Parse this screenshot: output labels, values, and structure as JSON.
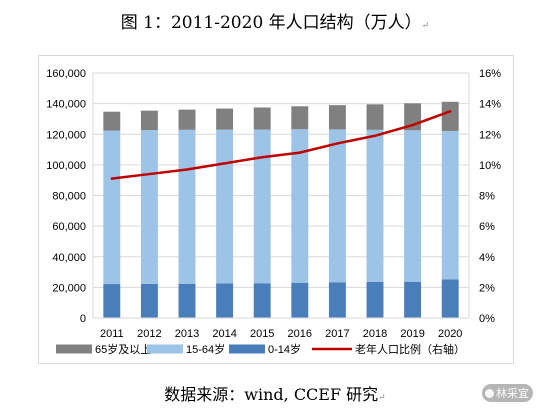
{
  "title": "图 1：2011-2020 年人口结构（万人）",
  "source": "数据来源：wind, CCEF 研究",
  "watermark": "林采宜",
  "colors": {
    "age_65_plus": "#808080",
    "age_15_64": "#9dc3e6",
    "age_0_14": "#4a7ebb",
    "elderly_ratio": "#c00000",
    "grid": "#d9d9d9",
    "axis": "#d9d9d9"
  },
  "chart_data": {
    "type": "bar",
    "stacked": true,
    "categories": [
      "2011",
      "2012",
      "2013",
      "2014",
      "2015",
      "2016",
      "2017",
      "2018",
      "2019",
      "2020"
    ],
    "series": [
      {
        "name": "0-14岁",
        "axis": "left",
        "color_key": "age_0_14",
        "values": [
          22164,
          22287,
          22329,
          22558,
          22715,
          23008,
          23348,
          23523,
          23689,
          25277
        ]
      },
      {
        "name": "15-64岁",
        "axis": "left",
        "color_key": "age_15_64",
        "values": [
          100283,
          100403,
          100582,
          100469,
          100361,
          100260,
          99829,
          99357,
          98910,
          96871
        ]
      },
      {
        "name": "65岁及以上",
        "axis": "left",
        "color_key": "age_65_plus",
        "values": [
          12288,
          12714,
          13161,
          13755,
          14386,
          15003,
          15831,
          16658,
          17603,
          19064
        ]
      },
      {
        "name": "老年人口比例（右轴）",
        "type": "line",
        "axis": "right",
        "color_key": "elderly_ratio",
        "values": [
          9.1,
          9.4,
          9.7,
          10.1,
          10.5,
          10.8,
          11.4,
          11.9,
          12.6,
          13.5
        ]
      }
    ],
    "ylim": [
      0,
      160000
    ],
    "yticks": [
      "0",
      "20,000",
      "40,000",
      "60,000",
      "80,000",
      "100,000",
      "120,000",
      "140,000",
      "160,000"
    ],
    "ylim_right": [
      0,
      16
    ],
    "yticks_right": [
      "0%",
      "2%",
      "4%",
      "6%",
      "8%",
      "10%",
      "12%",
      "14%",
      "16%"
    ],
    "grid": true,
    "legend": {
      "position": "bottom",
      "order": [
        "65岁及以上",
        "15-64岁",
        "0-14岁",
        "老年人口比例（右轴）"
      ]
    }
  }
}
